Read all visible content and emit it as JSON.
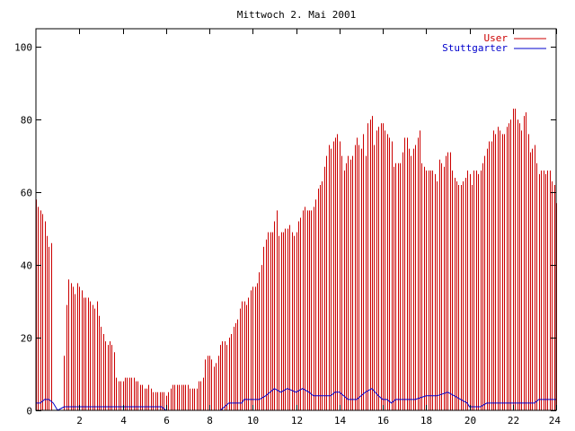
{
  "chart_data": {
    "type": "bar",
    "title": "Mittwoch 2. Mai 2001",
    "xlabel": "",
    "ylabel": "",
    "xlim": [
      0,
      24
    ],
    "ylim": [
      0,
      105
    ],
    "grid": false,
    "legend_position": "top-right",
    "x_ticks": [
      2,
      4,
      6,
      8,
      10,
      12,
      14,
      16,
      18,
      20,
      22,
      24
    ],
    "y_ticks": [
      0,
      20,
      40,
      60,
      80,
      100
    ],
    "series": [
      {
        "name": "User",
        "type": "impulses",
        "color": "#cc0000",
        "points": [
          [
            0.0,
            58
          ],
          [
            0.1,
            56
          ],
          [
            0.2,
            55
          ],
          [
            0.3,
            54
          ],
          [
            0.4,
            52
          ],
          [
            0.5,
            48
          ],
          [
            0.6,
            45
          ],
          [
            0.7,
            46
          ],
          [
            1.3,
            15
          ],
          [
            1.4,
            29
          ],
          [
            1.5,
            36
          ],
          [
            1.6,
            35
          ],
          [
            1.7,
            34
          ],
          [
            1.8,
            32
          ],
          [
            1.9,
            35
          ],
          [
            2.0,
            34
          ],
          [
            2.1,
            33
          ],
          [
            2.2,
            31
          ],
          [
            2.3,
            31
          ],
          [
            2.4,
            31
          ],
          [
            2.5,
            30
          ],
          [
            2.6,
            29
          ],
          [
            2.7,
            28
          ],
          [
            2.8,
            30
          ],
          [
            2.9,
            26
          ],
          [
            3.0,
            23
          ],
          [
            3.1,
            21
          ],
          [
            3.2,
            19
          ],
          [
            3.3,
            18
          ],
          [
            3.4,
            19
          ],
          [
            3.5,
            18
          ],
          [
            3.6,
            16
          ],
          [
            3.7,
            9
          ],
          [
            3.8,
            8
          ],
          [
            3.9,
            8
          ],
          [
            4.0,
            8
          ],
          [
            4.1,
            9
          ],
          [
            4.2,
            9
          ],
          [
            4.3,
            9
          ],
          [
            4.4,
            9
          ],
          [
            4.5,
            9
          ],
          [
            4.6,
            8
          ],
          [
            4.7,
            8
          ],
          [
            4.8,
            7
          ],
          [
            4.9,
            7
          ],
          [
            5.0,
            6
          ],
          [
            5.1,
            6
          ],
          [
            5.2,
            7
          ],
          [
            5.3,
            6
          ],
          [
            5.4,
            5
          ],
          [
            5.5,
            5
          ],
          [
            5.6,
            5
          ],
          [
            5.7,
            5
          ],
          [
            5.8,
            5
          ],
          [
            5.9,
            5
          ],
          [
            6.0,
            4
          ],
          [
            6.1,
            5
          ],
          [
            6.2,
            6
          ],
          [
            6.3,
            7
          ],
          [
            6.4,
            7
          ],
          [
            6.5,
            7
          ],
          [
            6.6,
            7
          ],
          [
            6.7,
            7
          ],
          [
            6.8,
            7
          ],
          [
            6.9,
            7
          ],
          [
            7.0,
            7
          ],
          [
            7.1,
            6
          ],
          [
            7.2,
            6
          ],
          [
            7.3,
            6
          ],
          [
            7.4,
            6
          ],
          [
            7.5,
            8
          ],
          [
            7.6,
            8
          ],
          [
            7.7,
            9
          ],
          [
            7.8,
            14
          ],
          [
            7.9,
            15
          ],
          [
            8.0,
            15
          ],
          [
            8.1,
            14
          ],
          [
            8.2,
            12
          ],
          [
            8.3,
            13
          ],
          [
            8.4,
            15
          ],
          [
            8.5,
            18
          ],
          [
            8.6,
            19
          ],
          [
            8.7,
            19
          ],
          [
            8.8,
            18
          ],
          [
            8.9,
            20
          ],
          [
            9.0,
            21
          ],
          [
            9.1,
            23
          ],
          [
            9.2,
            24
          ],
          [
            9.3,
            25
          ],
          [
            9.4,
            28
          ],
          [
            9.5,
            30
          ],
          [
            9.6,
            30
          ],
          [
            9.7,
            29
          ],
          [
            9.8,
            31
          ],
          [
            9.9,
            33
          ],
          [
            10.0,
            34
          ],
          [
            10.1,
            34
          ],
          [
            10.2,
            35
          ],
          [
            10.3,
            38
          ],
          [
            10.4,
            40
          ],
          [
            10.5,
            45
          ],
          [
            10.6,
            47
          ],
          [
            10.7,
            49
          ],
          [
            10.8,
            49
          ],
          [
            10.9,
            49
          ],
          [
            11.0,
            52
          ],
          [
            11.1,
            55
          ],
          [
            11.2,
            48
          ],
          [
            11.3,
            49
          ],
          [
            11.4,
            49
          ],
          [
            11.5,
            50
          ],
          [
            11.6,
            50
          ],
          [
            11.7,
            51
          ],
          [
            11.8,
            49
          ],
          [
            11.9,
            48
          ],
          [
            12.0,
            49
          ],
          [
            12.1,
            52
          ],
          [
            12.2,
            53
          ],
          [
            12.3,
            55
          ],
          [
            12.4,
            56
          ],
          [
            12.5,
            55
          ],
          [
            12.6,
            55
          ],
          [
            12.7,
            55
          ],
          [
            12.8,
            56
          ],
          [
            12.9,
            58
          ],
          [
            13.0,
            61
          ],
          [
            13.1,
            62
          ],
          [
            13.2,
            63
          ],
          [
            13.3,
            67
          ],
          [
            13.4,
            70
          ],
          [
            13.5,
            73
          ],
          [
            13.6,
            72
          ],
          [
            13.7,
            74
          ],
          [
            13.8,
            75
          ],
          [
            13.9,
            76
          ],
          [
            14.0,
            74
          ],
          [
            14.1,
            70
          ],
          [
            14.2,
            66
          ],
          [
            14.3,
            68
          ],
          [
            14.4,
            70
          ],
          [
            14.5,
            69
          ],
          [
            14.6,
            70
          ],
          [
            14.7,
            73
          ],
          [
            14.8,
            75
          ],
          [
            14.9,
            73
          ],
          [
            15.0,
            72
          ],
          [
            15.1,
            76
          ],
          [
            15.2,
            70
          ],
          [
            15.3,
            79
          ],
          [
            15.4,
            80
          ],
          [
            15.5,
            81
          ],
          [
            15.6,
            73
          ],
          [
            15.7,
            77
          ],
          [
            15.8,
            78
          ],
          [
            15.9,
            79
          ],
          [
            16.0,
            79
          ],
          [
            16.1,
            77
          ],
          [
            16.2,
            76
          ],
          [
            16.3,
            75
          ],
          [
            16.4,
            74
          ],
          [
            16.5,
            67
          ],
          [
            16.6,
            68
          ],
          [
            16.7,
            68
          ],
          [
            16.8,
            68
          ],
          [
            16.9,
            71
          ],
          [
            17.0,
            75
          ],
          [
            17.1,
            75
          ],
          [
            17.2,
            72
          ],
          [
            17.3,
            70
          ],
          [
            17.4,
            72
          ],
          [
            17.5,
            73
          ],
          [
            17.6,
            75
          ],
          [
            17.7,
            77
          ],
          [
            17.8,
            68
          ],
          [
            17.9,
            67
          ],
          [
            18.0,
            66
          ],
          [
            18.1,
            66
          ],
          [
            18.2,
            66
          ],
          [
            18.3,
            66
          ],
          [
            18.4,
            65
          ],
          [
            18.5,
            63
          ],
          [
            18.6,
            69
          ],
          [
            18.7,
            68
          ],
          [
            18.8,
            67
          ],
          [
            18.9,
            70
          ],
          [
            19.0,
            71
          ],
          [
            19.1,
            71
          ],
          [
            19.2,
            66
          ],
          [
            19.3,
            64
          ],
          [
            19.4,
            63
          ],
          [
            19.5,
            62
          ],
          [
            19.6,
            62
          ],
          [
            19.7,
            63
          ],
          [
            19.8,
            64
          ],
          [
            19.9,
            66
          ],
          [
            20.0,
            65
          ],
          [
            20.1,
            62
          ],
          [
            20.2,
            66
          ],
          [
            20.3,
            66
          ],
          [
            20.4,
            65
          ],
          [
            20.5,
            66
          ],
          [
            20.6,
            68
          ],
          [
            20.7,
            70
          ],
          [
            20.8,
            72
          ],
          [
            20.9,
            74
          ],
          [
            21.0,
            74
          ],
          [
            21.1,
            77
          ],
          [
            21.2,
            76
          ],
          [
            21.3,
            78
          ],
          [
            21.4,
            77
          ],
          [
            21.5,
            76
          ],
          [
            21.6,
            76
          ],
          [
            21.7,
            78
          ],
          [
            21.8,
            79
          ],
          [
            21.9,
            80
          ],
          [
            22.0,
            83
          ],
          [
            22.1,
            83
          ],
          [
            22.2,
            80
          ],
          [
            22.3,
            79
          ],
          [
            22.4,
            77
          ],
          [
            22.5,
            81
          ],
          [
            22.6,
            82
          ],
          [
            22.7,
            76
          ],
          [
            22.8,
            71
          ],
          [
            22.9,
            72
          ],
          [
            23.0,
            73
          ],
          [
            23.1,
            68
          ],
          [
            23.2,
            65
          ],
          [
            23.3,
            66
          ],
          [
            23.4,
            66
          ],
          [
            23.5,
            65
          ],
          [
            23.6,
            66
          ],
          [
            23.7,
            66
          ],
          [
            23.8,
            63
          ],
          [
            23.9,
            62
          ],
          [
            24.0,
            57
          ]
        ]
      },
      {
        "name": "Stuttgarter",
        "type": "line",
        "color": "#0000cc",
        "points": [
          [
            0.0,
            2
          ],
          [
            0.2,
            2
          ],
          [
            0.4,
            3
          ],
          [
            0.6,
            3
          ],
          [
            0.8,
            2
          ],
          [
            1.0,
            0
          ],
          [
            1.3,
            1
          ],
          [
            1.5,
            1
          ],
          [
            2.0,
            1
          ],
          [
            3.0,
            1
          ],
          [
            4.0,
            1
          ],
          [
            5.0,
            1
          ],
          [
            5.8,
            1
          ],
          [
            6.0,
            0
          ],
          [
            8.5,
            0
          ],
          [
            8.7,
            1
          ],
          [
            8.9,
            2
          ],
          [
            9.2,
            2
          ],
          [
            9.5,
            2
          ],
          [
            9.6,
            3
          ],
          [
            10.0,
            3
          ],
          [
            10.3,
            3
          ],
          [
            10.6,
            4
          ],
          [
            10.8,
            5
          ],
          [
            11.0,
            6
          ],
          [
            11.3,
            5
          ],
          [
            11.6,
            6
          ],
          [
            12.0,
            5
          ],
          [
            12.3,
            6
          ],
          [
            12.6,
            5
          ],
          [
            12.8,
            4
          ],
          [
            13.0,
            4
          ],
          [
            13.3,
            4
          ],
          [
            13.6,
            4
          ],
          [
            13.8,
            5
          ],
          [
            14.0,
            5
          ],
          [
            14.2,
            4
          ],
          [
            14.4,
            3
          ],
          [
            14.6,
            3
          ],
          [
            14.8,
            3
          ],
          [
            15.0,
            4
          ],
          [
            15.2,
            5
          ],
          [
            15.5,
            6
          ],
          [
            15.8,
            4
          ],
          [
            16.0,
            3
          ],
          [
            16.2,
            3
          ],
          [
            16.4,
            2
          ],
          [
            16.6,
            3
          ],
          [
            16.8,
            3
          ],
          [
            17.0,
            3
          ],
          [
            17.5,
            3
          ],
          [
            18.0,
            4
          ],
          [
            18.5,
            4
          ],
          [
            19.0,
            5
          ],
          [
            19.3,
            4
          ],
          [
            19.6,
            3
          ],
          [
            19.9,
            2
          ],
          [
            20.0,
            1
          ],
          [
            20.5,
            1
          ],
          [
            20.8,
            2
          ],
          [
            21.0,
            2
          ],
          [
            22.0,
            2
          ],
          [
            23.0,
            2
          ],
          [
            23.2,
            3
          ],
          [
            24.0,
            3
          ]
        ]
      }
    ]
  }
}
